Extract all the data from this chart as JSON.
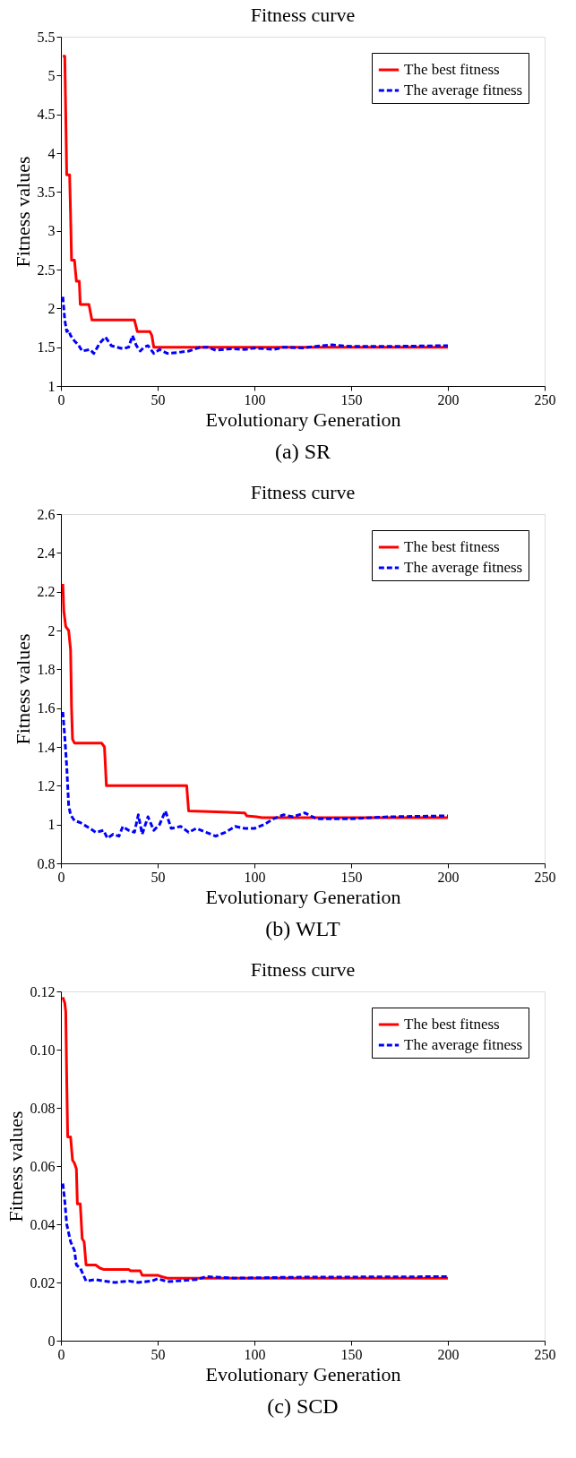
{
  "chart_data": [
    {
      "type": "line",
      "title": "Fitness curve",
      "xlabel": "Evolutionary Generation",
      "ylabel": "Fitness values",
      "annotations": [
        "(a) SR"
      ],
      "xlim": [
        0,
        250
      ],
      "xticks": [
        0,
        50,
        100,
        150,
        200,
        250
      ],
      "ylim": [
        1,
        5.5
      ],
      "yticks": [
        1,
        1.5,
        2,
        2.5,
        3,
        3.5,
        4,
        4.5,
        5,
        5.5
      ],
      "grid": false,
      "legend": "top right",
      "series": [
        {
          "name": "The best fitness",
          "color": "#ff0000",
          "line_style": "solid",
          "x": [
            1,
            2,
            2.5,
            3,
            4.5,
            5,
            5.5,
            7,
            8,
            9.5,
            10,
            14.5,
            16,
            38,
            39.5,
            46,
            47,
            48,
            200
          ],
          "values": [
            5.25,
            5.25,
            4.5,
            3.72,
            3.72,
            3.2,
            2.62,
            2.62,
            2.35,
            2.35,
            2.05,
            2.05,
            1.85,
            1.85,
            1.7,
            1.7,
            1.65,
            1.5,
            1.5
          ]
        },
        {
          "name": "The average fitness",
          "color": "#0000ff",
          "line_style": "dashed",
          "x": [
            1,
            2,
            3,
            4,
            5,
            7,
            9,
            11,
            15,
            17,
            20,
            23,
            26,
            29,
            32,
            35,
            37,
            39,
            41,
            43,
            45,
            48,
            51,
            55,
            60,
            66,
            72,
            76,
            80,
            88,
            95,
            100,
            110,
            115,
            125,
            135,
            140,
            150,
            170,
            200
          ],
          "values": [
            2.15,
            1.85,
            1.7,
            1.72,
            1.65,
            1.58,
            1.53,
            1.45,
            1.47,
            1.42,
            1.55,
            1.63,
            1.52,
            1.5,
            1.48,
            1.5,
            1.65,
            1.52,
            1.45,
            1.5,
            1.52,
            1.42,
            1.47,
            1.42,
            1.43,
            1.45,
            1.5,
            1.5,
            1.46,
            1.48,
            1.47,
            1.49,
            1.47,
            1.5,
            1.49,
            1.52,
            1.53,
            1.51,
            1.51,
            1.52
          ]
        }
      ]
    },
    {
      "type": "line",
      "title": "Fitness curve",
      "xlabel": "Evolutionary Generation",
      "ylabel": "Fitness values",
      "annotations": [
        "(b) WLT"
      ],
      "xlim": [
        0,
        250
      ],
      "xticks": [
        0,
        50,
        100,
        150,
        200,
        250
      ],
      "ylim": [
        0.8,
        2.6
      ],
      "yticks": [
        0.8,
        1,
        1.2,
        1.4,
        1.6,
        1.8,
        2,
        2.2,
        2.4,
        2.6
      ],
      "grid": false,
      "legend": "top right",
      "series": [
        {
          "name": "The best fitness",
          "color": "#ff0000",
          "line_style": "solid",
          "x": [
            1,
            1.5,
            2.5,
            4,
            5,
            5.5,
            6,
            7,
            21,
            22.5,
            23.5,
            65,
            66,
            80,
            95,
            96,
            101,
            104,
            200
          ],
          "values": [
            2.24,
            2.1,
            2.02,
            2.0,
            1.9,
            1.6,
            1.44,
            1.42,
            1.42,
            1.4,
            1.2,
            1.2,
            1.07,
            1.065,
            1.06,
            1.045,
            1.04,
            1.035,
            1.035
          ]
        },
        {
          "name": "The average fitness",
          "color": "#0000ff",
          "line_style": "dashed",
          "x": [
            1,
            2,
            3,
            4,
            5,
            7,
            10,
            15,
            18,
            22,
            24,
            27,
            30,
            32,
            35,
            38,
            40,
            42,
            45,
            48,
            51,
            54,
            57,
            62,
            66,
            70,
            75,
            80,
            85,
            90,
            95,
            100,
            105,
            110,
            115,
            120,
            126,
            132,
            140,
            150,
            170,
            200
          ],
          "values": [
            1.58,
            1.45,
            1.3,
            1.1,
            1.05,
            1.02,
            1.01,
            0.98,
            0.96,
            0.97,
            0.93,
            0.95,
            0.94,
            0.99,
            0.97,
            0.96,
            1.05,
            0.95,
            1.04,
            0.97,
            1.0,
            1.07,
            0.98,
            0.99,
            0.96,
            0.98,
            0.96,
            0.94,
            0.96,
            0.99,
            0.98,
            0.98,
            1.0,
            1.03,
            1.05,
            1.04,
            1.06,
            1.03,
            1.03,
            1.03,
            1.04,
            1.045
          ]
        }
      ]
    },
    {
      "type": "line",
      "title": "Fitness curve",
      "xlabel": "Evolutionary Generation",
      "ylabel": "Fitness values",
      "annotations": [
        "(c) SCD"
      ],
      "xlim": [
        0,
        250
      ],
      "xticks": [
        0,
        50,
        100,
        150,
        200,
        250
      ],
      "ylim": [
        0,
        0.12
      ],
      "yticks": [
        0,
        0.02,
        0.04,
        0.06,
        0.08,
        {
          "value": 0.1,
          "label": "0.10"
        },
        0.12
      ],
      "grid": false,
      "legend": "top right",
      "series": [
        {
          "name": "The best fitness",
          "color": "#ff0000",
          "line_style": "solid",
          "x": [
            1,
            2,
            2.5,
            3,
            3.5,
            5,
            6,
            7,
            8,
            8.5,
            10,
            11,
            12,
            13,
            18,
            20,
            22,
            35,
            36,
            41,
            42,
            50,
            52,
            55,
            200
          ],
          "values": [
            0.118,
            0.116,
            0.113,
            0.09,
            0.07,
            0.07,
            0.062,
            0.061,
            0.059,
            0.047,
            0.047,
            0.035,
            0.034,
            0.026,
            0.026,
            0.025,
            0.0245,
            0.0245,
            0.024,
            0.024,
            0.0225,
            0.0225,
            0.022,
            0.0215,
            0.0215
          ]
        },
        {
          "name": "The average fitness",
          "color": "#0000ff",
          "line_style": "dashed",
          "x": [
            1,
            2,
            3,
            5,
            7,
            8,
            10,
            12,
            13,
            18,
            22,
            28,
            35,
            40,
            47,
            50,
            55,
            60,
            70,
            75,
            90,
            120,
            200
          ],
          "values": [
            0.054,
            0.048,
            0.04,
            0.034,
            0.031,
            0.026,
            0.025,
            0.022,
            0.0205,
            0.021,
            0.0205,
            0.02,
            0.0205,
            0.02,
            0.0205,
            0.0213,
            0.0203,
            0.0205,
            0.021,
            0.022,
            0.0215,
            0.0218,
            0.022
          ]
        }
      ]
    }
  ]
}
